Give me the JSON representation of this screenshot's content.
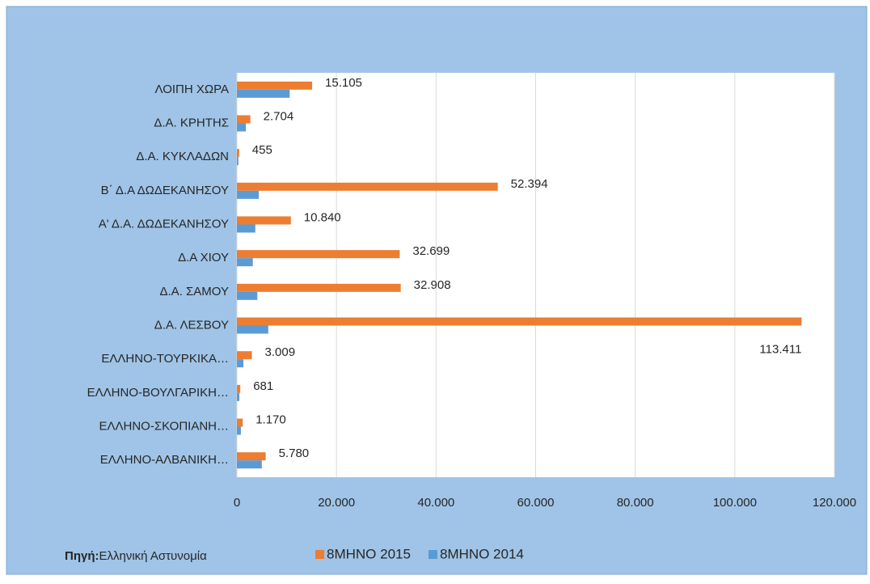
{
  "chart_data": {
    "type": "bar",
    "orientation": "horizontal",
    "categories": [
      "ΛΟΙΠΗ ΧΩΡΑ",
      "Δ.Α. ΚΡΗΤΗΣ",
      "Δ.Α.  ΚΥΚΛΑΔΩΝ",
      "Β΄ Δ.Α ΔΩΔΕΚΑΝΗΣΟΥ",
      "Α' Δ.Α. ΔΩΔΕΚΑΝΗΣΟΥ",
      "Δ.Α  ΧΙΟΥ",
      "Δ.Α.  ΣΑΜΟΥ",
      "Δ.Α. ΛΕΣΒΟΥ",
      "ΕΛΛΗΝΟ-ΤΟΥΡΚΙΚΑ…",
      "ΕΛΛΗΝΟ-ΒΟΥΛΓΑΡΙΚΗ…",
      "ΕΛΛΗΝΟ-ΣΚΟΠΙΑΝΗ…",
      "ΕΛΛΗΝΟ-ΑΛΒΑΝΙΚΗ…"
    ],
    "series": [
      {
        "name": "8ΜΗΝΟ 2015",
        "color": "#ed7d31",
        "values": [
          15105,
          2704,
          455,
          52394,
          10840,
          32699,
          32908,
          113411,
          3009,
          681,
          1170,
          5780
        ],
        "value_labels": [
          "15.105",
          "2.704",
          "455",
          "52.394",
          "10.840",
          "32.699",
          "32.908",
          "113.411",
          "3.009",
          "681",
          "1.170",
          "5.780"
        ]
      },
      {
        "name": "8ΜΗΝΟ 2014",
        "color": "#5b9bd5",
        "values": [
          10600,
          1800,
          300,
          4400,
          3700,
          3200,
          4100,
          6300,
          1300,
          500,
          800,
          5000
        ]
      }
    ],
    "xlim": [
      0,
      120000
    ],
    "xticks": [
      0,
      {
        "value": 20000,
        "label": "20.000"
      },
      {
        "value": 40000,
        "label": "40.000"
      },
      {
        "value": 60000,
        "label": "60.000"
      },
      {
        "value": 80000,
        "label": "80.000"
      },
      {
        "value": 100000,
        "label": "100.000"
      },
      {
        "value": 120000,
        "label": "120.000"
      }
    ],
    "grid": true,
    "legend": "bottom",
    "source_label": "Πηγή:",
    "source": "Ελληνική Αστυνομία"
  }
}
